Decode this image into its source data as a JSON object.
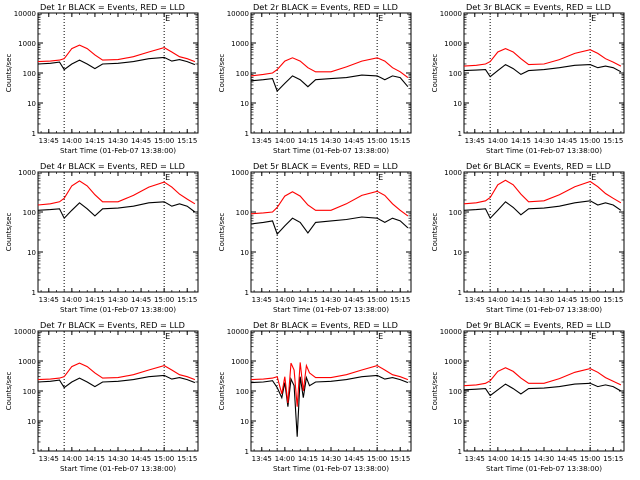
{
  "figure": {
    "ylabel": "Counts/sec",
    "xlabel": "Start Time (01-Feb-07 13:38:00)",
    "time_start_label": "01-Feb-07 13:38:00"
  },
  "chart_data": [
    {
      "type": "line",
      "title": "Det 1r BLACK = Events, RED = LLD",
      "xlabel": "Start Time (01-Feb-07 13:38:00)",
      "ylabel": "Counts/sec",
      "log_y": true,
      "ylim": [
        1,
        10000
      ],
      "xlim": [
        "13:38",
        "15:22"
      ],
      "x_tick_labels": [
        "13:45",
        "14:00",
        "14:15",
        "14:30",
        "14:45",
        "15:00",
        "15:15"
      ],
      "y_tick_labels": [
        "1",
        "10",
        "100",
        "1000",
        "10000"
      ],
      "markers": [
        {
          "time": "13:55",
          "label": ""
        },
        {
          "time": "15:00",
          "label": "E"
        }
      ],
      "x": [
        "13:38",
        "13:46",
        "13:52",
        "13:55",
        "14:00",
        "14:05",
        "14:10",
        "14:15",
        "14:20",
        "14:30",
        "14:40",
        "14:50",
        "15:00",
        "15:05",
        "15:10",
        "15:15",
        "15:20"
      ],
      "series": [
        {
          "name": "Events",
          "color": "#000000",
          "values": [
            200,
            210,
            230,
            130,
            200,
            270,
            200,
            140,
            200,
            210,
            240,
            300,
            330,
            250,
            280,
            240,
            190
          ]
        },
        {
          "name": "LLD",
          "color": "#ff0000",
          "values": [
            240,
            250,
            270,
            300,
            650,
            850,
            650,
            400,
            270,
            280,
            350,
            500,
            700,
            500,
            350,
            300,
            240
          ]
        }
      ]
    },
    {
      "type": "line",
      "title": "Det 2r BLACK = Events, RED = LLD",
      "xlabel": "Start Time (01-Feb-07 13:38:00)",
      "ylabel": "Counts/sec",
      "log_y": true,
      "ylim": [
        1,
        10000
      ],
      "xlim": [
        "13:38",
        "15:22"
      ],
      "x_tick_labels": [
        "13:45",
        "14:00",
        "14:15",
        "14:30",
        "14:45",
        "15:00",
        "15:15"
      ],
      "y_tick_labels": [
        "1",
        "10",
        "100",
        "1000",
        "10000"
      ],
      "markers": [
        {
          "time": "13:55",
          "label": ""
        },
        {
          "time": "15:00",
          "label": "E"
        }
      ],
      "x": [
        "13:38",
        "13:46",
        "13:52",
        "13:55",
        "14:00",
        "14:05",
        "14:10",
        "14:15",
        "14:20",
        "14:30",
        "14:40",
        "14:50",
        "15:00",
        "15:05",
        "15:10",
        "15:15",
        "15:20"
      ],
      "series": [
        {
          "name": "Events",
          "color": "#000000",
          "values": [
            55,
            60,
            65,
            25,
            45,
            80,
            60,
            35,
            60,
            65,
            70,
            85,
            80,
            60,
            80,
            70,
            35
          ]
        },
        {
          "name": "LLD",
          "color": "#ff0000",
          "values": [
            80,
            90,
            100,
            130,
            250,
            320,
            250,
            150,
            110,
            110,
            160,
            250,
            320,
            250,
            150,
            110,
            70
          ]
        }
      ]
    },
    {
      "type": "line",
      "title": "Det 3r BLACK = Events, RED = LLD",
      "xlabel": "Start Time (01-Feb-07 13:38:00)",
      "ylabel": "Counts/sec",
      "log_y": true,
      "ylim": [
        1,
        10000
      ],
      "xlim": [
        "13:38",
        "15:22"
      ],
      "x_tick_labels": [
        "13:45",
        "14:00",
        "14:15",
        "14:30",
        "14:45",
        "15:00",
        "15:15"
      ],
      "y_tick_labels": [
        "1",
        "10",
        "100",
        "1000",
        "10000"
      ],
      "markers": [
        {
          "time": "13:55",
          "label": ""
        },
        {
          "time": "15:00",
          "label": "E"
        }
      ],
      "x": [
        "13:38",
        "13:46",
        "13:52",
        "13:55",
        "14:00",
        "14:05",
        "14:10",
        "14:15",
        "14:20",
        "14:30",
        "14:40",
        "14:50",
        "15:00",
        "15:05",
        "15:10",
        "15:15",
        "15:20"
      ],
      "series": [
        {
          "name": "Events",
          "color": "#000000",
          "values": [
            120,
            125,
            130,
            75,
            120,
            190,
            140,
            90,
            120,
            130,
            150,
            180,
            190,
            150,
            170,
            150,
            110
          ]
        },
        {
          "name": "LLD",
          "color": "#ff0000",
          "values": [
            170,
            180,
            200,
            240,
            500,
            650,
            500,
            300,
            190,
            200,
            280,
            450,
            600,
            450,
            300,
            230,
            170
          ]
        }
      ]
    },
    {
      "type": "line",
      "title": "Det 4r BLACK = Events, RED = LLD",
      "xlabel": "Start Time (01-Feb-07 13:38:00)",
      "ylabel": "Counts/sec",
      "log_y": true,
      "ylim": [
        1,
        1000
      ],
      "xlim": [
        "13:38",
        "15:22"
      ],
      "x_tick_labels": [
        "13:45",
        "14:00",
        "14:15",
        "14:30",
        "14:45",
        "15:00",
        "15:15"
      ],
      "y_tick_labels": [
        "1",
        "10",
        "100",
        "1000"
      ],
      "markers": [
        {
          "time": "13:55",
          "label": ""
        },
        {
          "time": "15:00",
          "label": "E"
        }
      ],
      "x": [
        "13:38",
        "13:46",
        "13:52",
        "13:55",
        "14:00",
        "14:05",
        "14:10",
        "14:15",
        "14:20",
        "14:30",
        "14:40",
        "14:50",
        "15:00",
        "15:05",
        "15:10",
        "15:15",
        "15:20"
      ],
      "series": [
        {
          "name": "Events",
          "color": "#000000",
          "values": [
            110,
            115,
            120,
            70,
            110,
            170,
            120,
            80,
            120,
            125,
            140,
            170,
            180,
            140,
            160,
            140,
            100
          ]
        },
        {
          "name": "LLD",
          "color": "#ff0000",
          "values": [
            150,
            160,
            180,
            220,
            450,
            600,
            450,
            270,
            180,
            180,
            260,
            420,
            560,
            420,
            280,
            210,
            160
          ]
        }
      ]
    },
    {
      "type": "line",
      "title": "Det 5r BLACK = Events, RED = LLD",
      "xlabel": "Start Time (01-Feb-07 13:38:00)",
      "ylabel": "Counts/sec",
      "log_y": true,
      "ylim": [
        1,
        1000
      ],
      "xlim": [
        "13:38",
        "15:22"
      ],
      "x_tick_labels": [
        "13:45",
        "14:00",
        "14:15",
        "14:30",
        "14:45",
        "15:00",
        "15:15"
      ],
      "y_tick_labels": [
        "1",
        "10",
        "100",
        "1000"
      ],
      "markers": [
        {
          "time": "13:55",
          "label": ""
        },
        {
          "time": "15:00",
          "label": "E"
        }
      ],
      "x": [
        "13:38",
        "13:46",
        "13:52",
        "13:55",
        "14:00",
        "14:05",
        "14:10",
        "14:15",
        "14:20",
        "14:30",
        "14:40",
        "14:50",
        "15:00",
        "15:05",
        "15:10",
        "15:15",
        "15:20"
      ],
      "series": [
        {
          "name": "Events",
          "color": "#000000",
          "values": [
            50,
            55,
            60,
            28,
            45,
            70,
            55,
            30,
            55,
            60,
            65,
            75,
            70,
            55,
            70,
            60,
            40
          ]
        },
        {
          "name": "LLD",
          "color": "#ff0000",
          "values": [
            90,
            95,
            100,
            130,
            250,
            320,
            250,
            150,
            110,
            110,
            160,
            260,
            330,
            260,
            160,
            110,
            80
          ]
        }
      ]
    },
    {
      "type": "line",
      "title": "Det 6r BLACK = Events, RED = LLD",
      "xlabel": "Start Time (01-Feb-07 13:38:00)",
      "ylabel": "Counts/sec",
      "log_y": true,
      "ylim": [
        1,
        1000
      ],
      "xlim": [
        "13:38",
        "15:22"
      ],
      "x_tick_labels": [
        "13:45",
        "14:00",
        "14:15",
        "14:30",
        "14:45",
        "15:00",
        "15:15"
      ],
      "y_tick_labels": [
        "1",
        "10",
        "100",
        "1000"
      ],
      "markers": [
        {
          "time": "13:55",
          "label": ""
        },
        {
          "time": "15:00",
          "label": "E"
        }
      ],
      "x": [
        "13:38",
        "13:46",
        "13:52",
        "13:55",
        "14:00",
        "14:05",
        "14:10",
        "14:15",
        "14:20",
        "14:30",
        "14:40",
        "14:50",
        "15:00",
        "15:05",
        "15:10",
        "15:15",
        "15:20"
      ],
      "series": [
        {
          "name": "Events",
          "color": "#000000",
          "values": [
            110,
            115,
            120,
            70,
            110,
            180,
            130,
            85,
            120,
            125,
            140,
            170,
            190,
            150,
            170,
            150,
            110
          ]
        },
        {
          "name": "LLD",
          "color": "#ff0000",
          "values": [
            160,
            170,
            190,
            230,
            480,
            620,
            480,
            280,
            180,
            190,
            270,
            430,
            580,
            430,
            290,
            220,
            170
          ]
        }
      ]
    },
    {
      "type": "line",
      "title": "Det 7r BLACK = Events, RED = LLD",
      "xlabel": "Start Time (01-Feb-07 13:38:00)",
      "ylabel": "Counts/sec",
      "log_y": true,
      "ylim": [
        1,
        10000
      ],
      "xlim": [
        "13:38",
        "15:22"
      ],
      "x_tick_labels": [
        "13:45",
        "14:00",
        "14:15",
        "14:30",
        "14:45",
        "15:00",
        "15:15"
      ],
      "y_tick_labels": [
        "1",
        "10",
        "100",
        "1000",
        "10000"
      ],
      "markers": [
        {
          "time": "13:55",
          "label": ""
        },
        {
          "time": "15:00",
          "label": "E"
        }
      ],
      "x": [
        "13:38",
        "13:46",
        "13:52",
        "13:55",
        "14:00",
        "14:05",
        "14:10",
        "14:15",
        "14:20",
        "14:30",
        "14:40",
        "14:50",
        "15:00",
        "15:05",
        "15:10",
        "15:15",
        "15:20"
      ],
      "series": [
        {
          "name": "Events",
          "color": "#000000",
          "values": [
            200,
            210,
            230,
            130,
            200,
            270,
            200,
            140,
            200,
            210,
            240,
            300,
            330,
            250,
            280,
            240,
            190
          ]
        },
        {
          "name": "LLD",
          "color": "#ff0000",
          "values": [
            240,
            250,
            270,
            300,
            650,
            850,
            650,
            400,
            270,
            280,
            350,
            500,
            700,
            500,
            350,
            300,
            240
          ]
        }
      ]
    },
    {
      "type": "line",
      "title": "Det 8r BLACK = Events, RED = LLD",
      "xlabel": "Start Time (01-Feb-07 13:38:00)",
      "ylabel": "Counts/sec",
      "log_y": true,
      "ylim": [
        1,
        10000
      ],
      "xlim": [
        "13:38",
        "15:22"
      ],
      "x_tick_labels": [
        "13:45",
        "14:00",
        "14:15",
        "14:30",
        "14:45",
        "15:00",
        "15:15"
      ],
      "y_tick_labels": [
        "1",
        "10",
        "100",
        "1000",
        "10000"
      ],
      "markers": [
        {
          "time": "13:55",
          "label": ""
        },
        {
          "time": "15:00",
          "label": "E"
        }
      ],
      "x": [
        "13:38",
        "13:46",
        "13:52",
        "13:55",
        "13:58",
        "14:00",
        "14:02",
        "14:04",
        "14:06",
        "14:08",
        "14:10",
        "14:12",
        "14:14",
        "14:16",
        "14:20",
        "14:30",
        "14:40",
        "14:50",
        "15:00",
        "15:05",
        "15:10",
        "15:15",
        "15:20"
      ],
      "series": [
        {
          "name": "Events",
          "color": "#000000",
          "values": [
            190,
            200,
            220,
            130,
            60,
            190,
            30,
            250,
            150,
            3,
            300,
            60,
            280,
            150,
            200,
            210,
            240,
            300,
            330,
            250,
            280,
            240,
            190
          ]
        },
        {
          "name": "LLD",
          "color": "#ff0000",
          "values": [
            240,
            250,
            270,
            300,
            80,
            300,
            40,
            850,
            500,
            30,
            900,
            100,
            700,
            400,
            280,
            280,
            350,
            500,
            700,
            500,
            350,
            300,
            240
          ]
        }
      ]
    },
    {
      "type": "line",
      "title": "Det 9r BLACK = Events, RED = LLD",
      "xlabel": "Start Time (01-Feb-07 13:38:00)",
      "ylabel": "Counts/sec",
      "log_y": true,
      "ylim": [
        1,
        10000
      ],
      "xlim": [
        "13:38",
        "15:22"
      ],
      "x_tick_labels": [
        "13:45",
        "14:00",
        "14:15",
        "14:30",
        "14:45",
        "15:00",
        "15:15"
      ],
      "y_tick_labels": [
        "1",
        "10",
        "100",
        "1000",
        "10000"
      ],
      "markers": [
        {
          "time": "13:55",
          "label": ""
        },
        {
          "time": "15:00",
          "label": "E"
        }
      ],
      "x": [
        "13:38",
        "13:46",
        "13:52",
        "13:55",
        "14:00",
        "14:05",
        "14:10",
        "14:15",
        "14:20",
        "14:30",
        "14:40",
        "14:50",
        "15:00",
        "15:05",
        "15:10",
        "15:15",
        "15:20"
      ],
      "series": [
        {
          "name": "Events",
          "color": "#000000",
          "values": [
            110,
            115,
            120,
            70,
            110,
            170,
            120,
            80,
            120,
            125,
            140,
            170,
            180,
            140,
            160,
            140,
            100
          ]
        },
        {
          "name": "LLD",
          "color": "#ff0000",
          "values": [
            150,
            160,
            180,
            220,
            450,
            600,
            450,
            270,
            180,
            180,
            260,
            420,
            560,
            420,
            280,
            210,
            160
          ]
        }
      ]
    }
  ]
}
